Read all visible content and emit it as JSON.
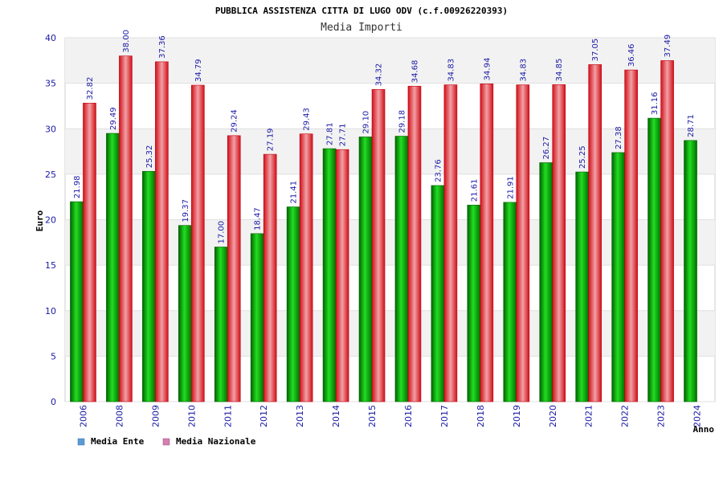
{
  "chart_data": {
    "type": "bar",
    "title": "PUBBLICA ASSISTENZA CITTA DI LUGO ODV (c.f.00926220393)",
    "subtitle": "Media Importi",
    "xlabel": "Anno",
    "ylabel": "Euro",
    "ylim": [
      0,
      40
    ],
    "yticks": [
      0,
      5,
      10,
      15,
      20,
      25,
      30,
      35,
      40
    ],
    "categories": [
      "2006",
      "2008",
      "2009",
      "2010",
      "2011",
      "2012",
      "2013",
      "2014",
      "2015",
      "2016",
      "2017",
      "2018",
      "2019",
      "2020",
      "2021",
      "2022",
      "2023",
      "2024"
    ],
    "series": [
      {
        "name": "Media Ente",
        "color": "#00a000",
        "values": [
          21.98,
          29.49,
          25.32,
          19.37,
          17.0,
          18.47,
          21.41,
          27.81,
          29.1,
          29.18,
          23.76,
          21.61,
          21.91,
          26.27,
          25.25,
          27.38,
          31.16,
          28.71
        ],
        "labels": [
          "21.98",
          "29.49",
          "25.32",
          "19.37",
          "17.00",
          "18.47",
          "21.41",
          "27.81",
          "29.10",
          "29.18",
          "23.76",
          "21.61",
          "21.91",
          "26.27",
          "25.25",
          "27.38",
          "31.16",
          "28.71"
        ]
      },
      {
        "name": "Media Nazionale",
        "color": "#e8202a",
        "values": [
          32.82,
          38.0,
          37.36,
          34.79,
          29.24,
          27.19,
          29.43,
          27.71,
          34.32,
          34.68,
          34.83,
          34.94,
          34.83,
          34.85,
          37.05,
          36.46,
          37.49,
          null
        ],
        "labels": [
          "32.82",
          "38.00",
          "37.36",
          "34.79",
          "29.24",
          "27.19",
          "29.43",
          "27.71",
          "34.32",
          "34.68",
          "34.83",
          "34.94",
          "34.83",
          "34.85",
          "37.05",
          "36.46",
          "37.49",
          ""
        ]
      }
    ],
    "legend": {
      "position": "bottom-left",
      "items": [
        {
          "label": "Media Ente",
          "swatch": "#5b9bd5"
        },
        {
          "label": "Media Nazionale",
          "swatch": "#d47fb0"
        }
      ]
    },
    "grid": true
  }
}
